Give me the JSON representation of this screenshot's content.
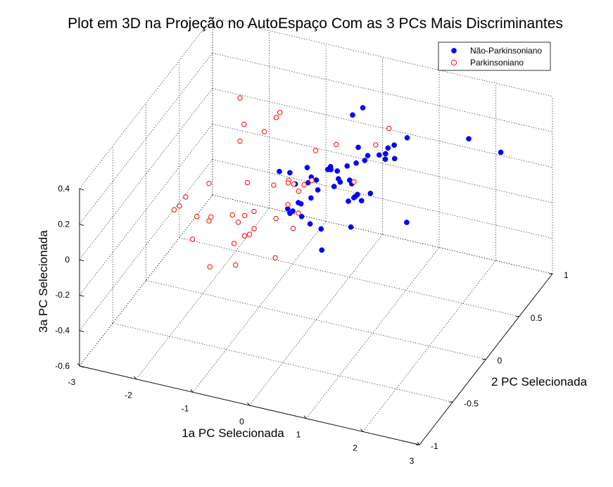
{
  "chart_data": {
    "type": "scatter",
    "projection": "3d",
    "title": "Plot em 3D na Projeção no AutoEspaço Com as 3 PCs Mais Discriminantes",
    "xlabel": "1a PC Selecionada",
    "ylabel": "2 PC Selecionada",
    "zlabel": "3a PC Selecionada",
    "xlim": [
      -3,
      3
    ],
    "ylim": [
      -1,
      1
    ],
    "zlim": [
      -0.6,
      0.4
    ],
    "grid": true,
    "legend_position": "top-right",
    "x_ticks": [
      "-3",
      "-2",
      "-1",
      "0",
      "1",
      "2",
      "3"
    ],
    "y_ticks": [
      "-1",
      "-0.5",
      "0",
      "0.5",
      "1"
    ],
    "z_ticks": [
      "-0.6",
      "-0.4",
      "-0.2",
      "0",
      "0.2",
      "0.4"
    ],
    "series": [
      {
        "name": "Não-Parkinsoniano",
        "marker": "filled-circle",
        "color": "#0000ff",
        "points": [
          [
            0.0,
            0.55,
            0.29
          ],
          [
            0.11,
            0.61,
            0.31
          ],
          [
            -0.54,
            -0.09,
            0.24
          ],
          [
            -0.39,
            -0.06,
            0.23
          ],
          [
            -0.26,
            -0.09,
            0.19
          ],
          [
            0.06,
            -0.17,
            0.26
          ],
          [
            0.29,
            -0.22,
            0.26
          ],
          [
            -0.19,
            0.03,
            0.23
          ],
          [
            -0.06,
            -0.02,
            0.21
          ],
          [
            0.11,
            -0.09,
            0.24
          ],
          [
            0.34,
            0.03,
            0.25
          ],
          [
            0.16,
            0.04,
            0.24
          ],
          [
            0.21,
            0.04,
            0.26
          ],
          [
            0.31,
            -0.04,
            0.29
          ],
          [
            0.41,
            0.12,
            0.24
          ],
          [
            0.49,
            -0.08,
            0.27
          ],
          [
            0.57,
            0.02,
            0.22
          ],
          [
            0.65,
            0.18,
            0.26
          ],
          [
            0.74,
            0.32,
            0.23
          ],
          [
            0.84,
            0.33,
            0.24
          ],
          [
            0.86,
            0.31,
            0.22
          ],
          [
            0.93,
            0.39,
            0.19
          ],
          [
            0.79,
            0.41,
            0.23
          ],
          [
            0.91,
            0.4,
            0.26
          ],
          [
            1.0,
            0.52,
            0.25
          ],
          [
            0.76,
            0.13,
            0.32
          ],
          [
            0.44,
            0.26,
            0.28
          ],
          [
            -0.31,
            -0.16,
            0.08
          ],
          [
            -0.09,
            -0.15,
            0.12
          ],
          [
            0.11,
            -0.31,
            0.14
          ],
          [
            -0.06,
            -0.34,
            0.16
          ],
          [
            0.24,
            -0.28,
            0.24
          ],
          [
            0.39,
            -0.06,
            0.21
          ],
          [
            0.45,
            -0.02,
            0.22
          ],
          [
            0.56,
            0.06,
            0.18
          ],
          [
            0.71,
            0.02,
            0.15
          ],
          [
            0.89,
            0.06,
            0.15
          ],
          [
            0.78,
            0.02,
            0.12
          ],
          [
            0.61,
            0.05,
            0.11
          ],
          [
            0.66,
            0.03,
            0.13
          ],
          [
            0.63,
            -0.05,
            0.14
          ],
          [
            0.26,
            -0.31,
            0.11
          ],
          [
            -0.21,
            -0.17,
            0.08
          ],
          [
            0.36,
            -0.23,
            0.05
          ],
          [
            0.72,
            -0.09,
            0.02
          ],
          [
            0.43,
            -0.28,
            -0.04
          ],
          [
            1.46,
            0.12,
            0.0
          ],
          [
            1.58,
            0.95,
            0.08
          ],
          [
            2.3,
            0.82,
            0.12
          ],
          [
            -0.1,
            -0.18,
            0.14
          ],
          [
            0.51,
            0.17,
            0.24
          ]
        ]
      },
      {
        "name": "Parkinsoniano",
        "marker": "open-circle",
        "color": "#ff0000",
        "points": [
          [
            -1.8,
            0.39,
            0.33
          ],
          [
            -1.26,
            0.53,
            0.22
          ],
          [
            -1.4,
            0.05,
            0.28
          ],
          [
            -1.23,
            0.27,
            0.24
          ],
          [
            -1.03,
            0.28,
            0.33
          ],
          [
            -1.41,
            0.12,
            0.34
          ],
          [
            -1.38,
            -0.68,
            0.08
          ],
          [
            -1.83,
            -0.4,
            0.15
          ],
          [
            -1.88,
            -0.45,
            0.12
          ],
          [
            -2.0,
            -0.43,
            0.08
          ],
          [
            -1.7,
            -0.16,
            0.12
          ],
          [
            -1.22,
            -0.54,
            0.15
          ],
          [
            -1.54,
            -0.48,
            0.1
          ],
          [
            -1.43,
            -0.39,
            0.04
          ],
          [
            -1.17,
            -0.26,
            0.03
          ],
          [
            -0.75,
            -0.36,
            0.0
          ],
          [
            -1.2,
            -0.01,
            0.09
          ],
          [
            -1.0,
            -0.22,
            0.02
          ],
          [
            -0.93,
            -0.14,
            0.01
          ],
          [
            -0.6,
            -0.09,
            -0.03
          ],
          [
            -0.81,
            -0.24,
            -0.03
          ],
          [
            -0.85,
            -0.35,
            -0.02
          ],
          [
            -1.02,
            -0.3,
            0.02
          ],
          [
            -0.46,
            -0.03,
            0.03
          ],
          [
            -0.32,
            -0.34,
            -0.11
          ],
          [
            -1.0,
            -0.38,
            -0.06
          ],
          [
            -0.51,
            0.43,
            0.11
          ],
          [
            -0.67,
            0.16,
            0.06
          ],
          [
            -0.51,
            0.1,
            0.08
          ],
          [
            -0.57,
            -0.15,
            0.19
          ],
          [
            -0.42,
            -0.06,
            0.17
          ],
          [
            -0.27,
            -0.03,
            0.12
          ],
          [
            -0.18,
            0.09,
            0.13
          ],
          [
            -0.14,
            -0.06,
            0.18
          ],
          [
            -0.04,
            -0.23,
            0.11
          ],
          [
            0.02,
            -0.36,
            0.09
          ],
          [
            0.1,
            0.22,
            0.29
          ],
          [
            0.55,
            0.43,
            0.22
          ],
          [
            0.62,
            0.57,
            0.25
          ],
          [
            0.53,
            0.12,
            0.16
          ],
          [
            -0.81,
            -0.52,
            -0.1
          ],
          [
            -1.11,
            -0.65,
            -0.07
          ]
        ]
      }
    ]
  }
}
